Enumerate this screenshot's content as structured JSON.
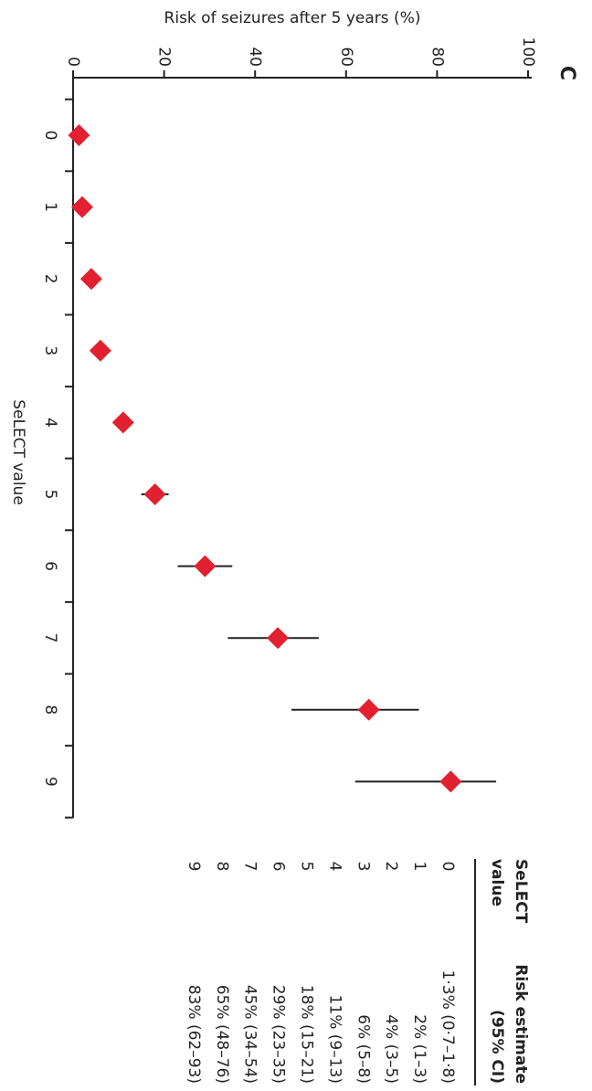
{
  "chart_data": {
    "type": "forest",
    "panel_label": "C",
    "y_label": "Risk of seizures after 5 years (%)",
    "x_label": "SeLECT value",
    "categories": [
      "0",
      "1",
      "2",
      "3",
      "4",
      "5",
      "6",
      "7",
      "8",
      "9"
    ],
    "series": [
      {
        "color": "#e3202f",
        "values": [
          1.3,
          2,
          4,
          6,
          11,
          18,
          29,
          45,
          65,
          83
        ],
        "error_low": [
          0.7,
          1,
          3,
          5,
          9,
          15,
          23,
          34,
          48,
          62
        ],
        "error_high": [
          1.8,
          3,
          5,
          8,
          13,
          21,
          35,
          54,
          76,
          93
        ],
        "value_labels": [
          "1·3% (0·7–1·8)",
          "2% (1–3)",
          "4% (3–5)",
          "6% (5–8)",
          "11% (9–13)",
          "18% (15–21)",
          "29% (23–35)",
          "45% (34–54)",
          "65% (48–76)",
          "83% (62–93)"
        ]
      }
    ],
    "ylim": [
      0,
      100
    ],
    "yticks": [
      0,
      20,
      40,
      60,
      80,
      100
    ],
    "table_headers": [
      [
        "SeLECT",
        "value"
      ],
      [
        "Risk estimate",
        "(95% CI)"
      ]
    ]
  }
}
